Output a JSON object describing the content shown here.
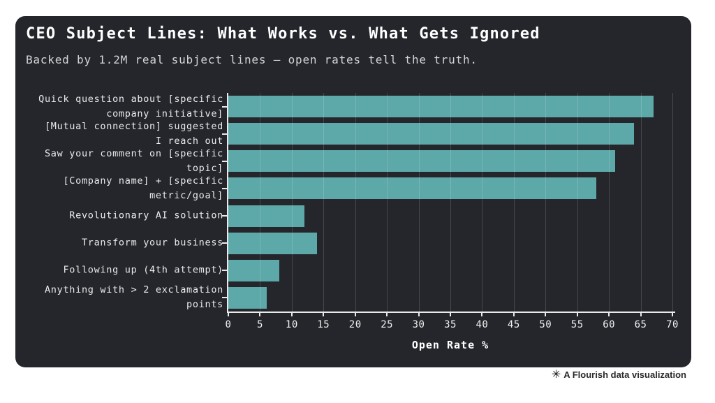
{
  "header": {
    "title": "CEO Subject Lines: What Works vs. What Gets Ignored",
    "subtitle": "Backed by 1.2M real subject lines — open rates tell the truth."
  },
  "chart_data": {
    "type": "bar",
    "orientation": "horizontal",
    "categories": [
      "Quick question about [specific\ncompany initiative]",
      "[Mutual connection] suggested\nI reach out",
      "Saw your comment on [specific\ntopic]",
      "[Company name] + [specific\nmetric/goal]",
      "Revolutionary AI solution",
      "Transform your business",
      "Following up (4th attempt)",
      "Anything with > 2 exclamation\npoints"
    ],
    "values": [
      67,
      64,
      61,
      58,
      12,
      14,
      8,
      6
    ],
    "xlabel": "Open Rate %",
    "xlim": [
      0,
      70
    ],
    "xticks": [
      0,
      5,
      10,
      15,
      20,
      25,
      30,
      35,
      40,
      45,
      50,
      55,
      60,
      65,
      70
    ],
    "grid": true,
    "legend": "none",
    "bar_color": "#5da8a8",
    "background_color": "#24262b"
  },
  "footer": {
    "icon": "✳",
    "label": "A Flourish data visualization"
  }
}
